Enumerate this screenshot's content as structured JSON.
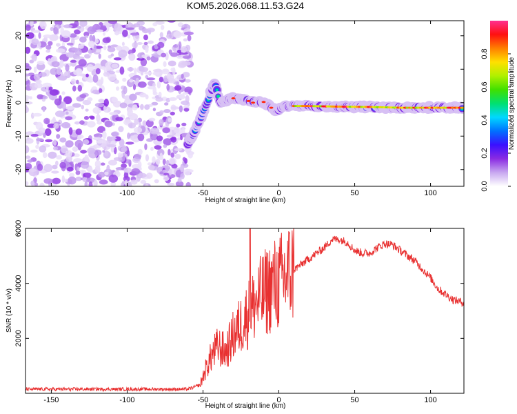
{
  "title": "KOM5.2026.068.11.53.G24",
  "chart_data": [
    {
      "type": "heatmap",
      "name": "spectrogram",
      "xlabel": "Height of straight line (km)",
      "ylabel": "Frequency (Hz)",
      "xlim": [
        -167,
        122
      ],
      "ylim": [
        -25,
        24.5
      ],
      "xticks": [
        -150,
        -100,
        -50,
        0,
        50,
        100
      ],
      "yticks": [
        -20,
        -10,
        0,
        10,
        20
      ],
      "noise_region_x": [
        -167,
        -58
      ],
      "ridge": {
        "description": "main spectral ridge (frequency in Hz vs height in km)",
        "points": [
          [
            -60,
            -12.5
          ],
          [
            -56,
            -9
          ],
          [
            -52,
            -5
          ],
          [
            -48,
            -1
          ],
          [
            -45,
            3
          ],
          [
            -42,
            6
          ],
          [
            -39,
            0
          ],
          [
            -35,
            0.5
          ],
          [
            -30,
            1.3
          ],
          [
            -25,
            1
          ],
          [
            -20,
            0.5
          ],
          [
            -17,
            0
          ],
          [
            -10,
            0.2
          ],
          [
            -5,
            -1.5
          ],
          [
            -2,
            -2.5
          ],
          [
            5,
            -1
          ],
          [
            10,
            -1
          ],
          [
            20,
            -1
          ],
          [
            40,
            -1.2
          ],
          [
            60,
            -1.3
          ],
          [
            80,
            -1.5
          ],
          [
            100,
            -1.5
          ],
          [
            120,
            -1.5
          ]
        ]
      },
      "colorbar": {
        "label": "Normalized spectral amplitude",
        "range": [
          0,
          1
        ],
        "ticks": [
          "0.0",
          "0.2",
          "0.4",
          "0.6",
          "0.8"
        ],
        "colors": [
          "#ffffff",
          "#c8a8f0",
          "#8a2be2",
          "#3a10ff",
          "#0070ff",
          "#00d8ff",
          "#00e070",
          "#40e000",
          "#b0f000",
          "#ffe000",
          "#ff8000",
          "#ff1010",
          "#ff3090"
        ]
      }
    },
    {
      "type": "line",
      "name": "snr",
      "xlabel": "Height of straight line (km)",
      "ylabel": "SNR (10 * v/v)",
      "xlim": [
        -167,
        122
      ],
      "ylim": [
        0,
        6000
      ],
      "xticks": [
        -150,
        -100,
        -50,
        0,
        50,
        100
      ],
      "yticks": [
        2000,
        4000,
        6000
      ],
      "color": "#e83030",
      "envelope": {
        "x": [
          -167,
          -100,
          -60,
          -52,
          -48,
          -44,
          -40,
          -35,
          -30,
          -25,
          -20,
          -15,
          -10,
          -5,
          0,
          5,
          10,
          15,
          20,
          25,
          30,
          35,
          40,
          45,
          50,
          55,
          60,
          65,
          70,
          75,
          80,
          85,
          90,
          95,
          100,
          105,
          110,
          115,
          122
        ],
        "y": [
          150,
          150,
          150,
          300,
          900,
          1400,
          1700,
          1500,
          2100,
          2500,
          2900,
          3300,
          3600,
          3900,
          4000,
          4300,
          4500,
          4700,
          4900,
          5100,
          5300,
          5600,
          5600,
          5500,
          5200,
          5100,
          5100,
          5300,
          5450,
          5400,
          5200,
          5000,
          4800,
          4500,
          4200,
          3800,
          3600,
          3400,
          3300
        ],
        "spike": [
          -19,
          6000
        ]
      }
    }
  ]
}
